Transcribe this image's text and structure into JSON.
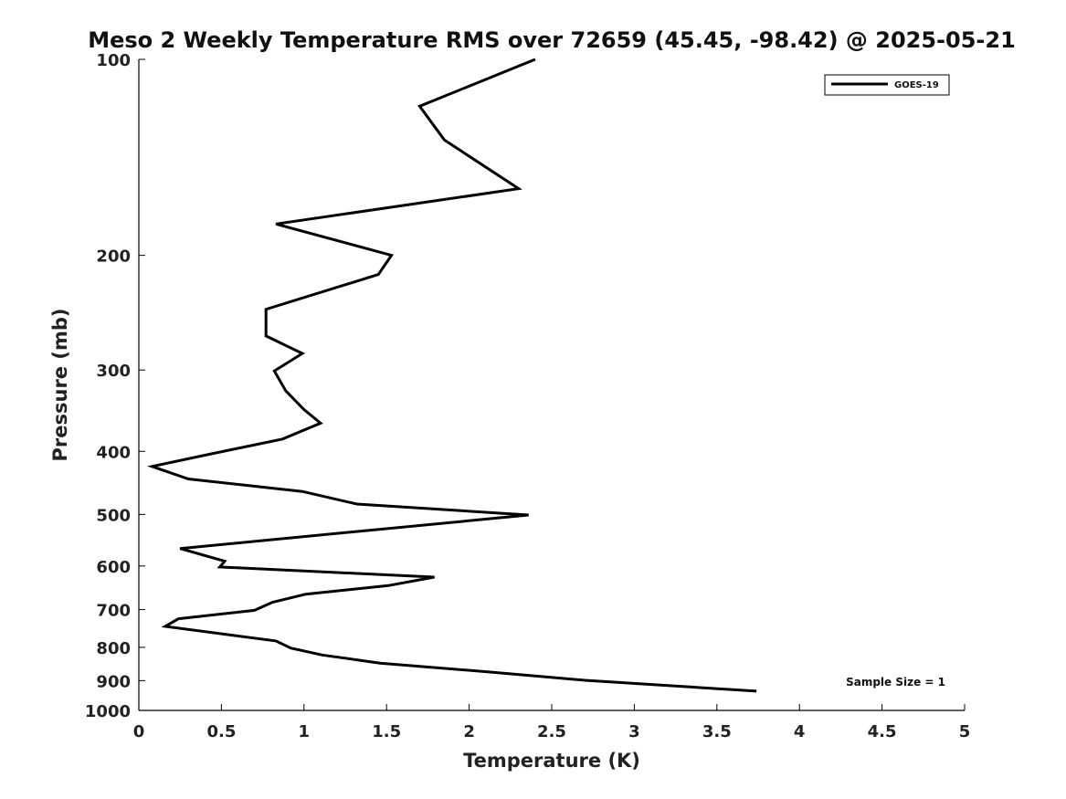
{
  "chart_data": {
    "type": "line",
    "title": "Meso 2 Weekly Temperature RMS over 72659 (45.45, -98.42) @ 2025-05-21",
    "xlabel": "Temperature (K)",
    "ylabel": "Pressure (mb)",
    "xlim": [
      0,
      5
    ],
    "ylim": [
      100,
      1000
    ],
    "y_scale": "log",
    "y_inverted": true,
    "grid": false,
    "x_ticks": [
      0,
      0.5,
      1,
      1.5,
      2,
      2.5,
      3,
      3.5,
      4,
      4.5,
      5
    ],
    "x_tick_labels": [
      "0",
      "0.5",
      "1",
      "1.5",
      "2",
      "2.5",
      "3",
      "3.5",
      "4",
      "4.5",
      "5"
    ],
    "y_ticks": [
      100,
      200,
      300,
      400,
      500,
      600,
      700,
      800,
      900,
      1000
    ],
    "y_tick_labels": [
      "100",
      "200",
      "300",
      "400",
      "500",
      "600",
      "700",
      "800",
      "900",
      "1000"
    ],
    "legend": {
      "placement": "top-right",
      "entries": [
        "GOES-19"
      ]
    },
    "annotation": "Sample Size = 1",
    "series": [
      {
        "name": "GOES-19",
        "color": "#000000",
        "points": [
          {
            "t": 2.4,
            "p": 100
          },
          {
            "t": 1.7,
            "p": 118
          },
          {
            "t": 1.85,
            "p": 133
          },
          {
            "t": 2.3,
            "p": 158
          },
          {
            "t": 0.83,
            "p": 179
          },
          {
            "t": 1.53,
            "p": 200
          },
          {
            "t": 1.45,
            "p": 214
          },
          {
            "t": 0.77,
            "p": 242
          },
          {
            "t": 0.77,
            "p": 266
          },
          {
            "t": 0.99,
            "p": 283
          },
          {
            "t": 0.82,
            "p": 301
          },
          {
            "t": 0.89,
            "p": 323
          },
          {
            "t": 1.0,
            "p": 345
          },
          {
            "t": 1.1,
            "p": 362
          },
          {
            "t": 0.87,
            "p": 383
          },
          {
            "t": 0.41,
            "p": 405
          },
          {
            "t": 0.08,
            "p": 422
          },
          {
            "t": 0.3,
            "p": 441
          },
          {
            "t": 0.99,
            "p": 461
          },
          {
            "t": 1.32,
            "p": 482
          },
          {
            "t": 2.36,
            "p": 501
          },
          {
            "t": 0.25,
            "p": 564
          },
          {
            "t": 0.52,
            "p": 590
          },
          {
            "t": 0.49,
            "p": 602
          },
          {
            "t": 1.79,
            "p": 624
          },
          {
            "t": 1.51,
            "p": 643
          },
          {
            "t": 1.01,
            "p": 663
          },
          {
            "t": 0.81,
            "p": 682
          },
          {
            "t": 0.7,
            "p": 702
          },
          {
            "t": 0.24,
            "p": 723
          },
          {
            "t": 0.16,
            "p": 743
          },
          {
            "t": 0.83,
            "p": 782
          },
          {
            "t": 0.92,
            "p": 802
          },
          {
            "t": 1.11,
            "p": 822
          },
          {
            "t": 1.46,
            "p": 846
          },
          {
            "t": 2.12,
            "p": 873
          },
          {
            "t": 2.7,
            "p": 899
          },
          {
            "t": 3.74,
            "p": 934
          }
        ]
      }
    ]
  }
}
